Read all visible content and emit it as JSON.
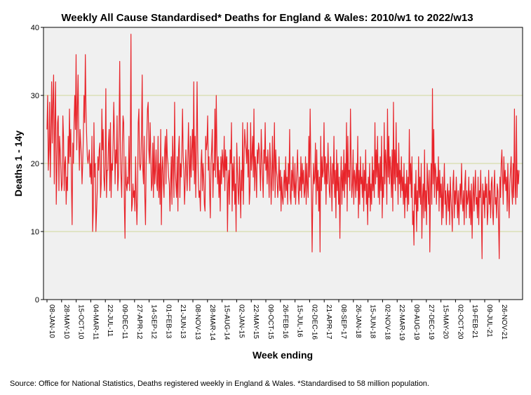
{
  "chart_data": {
    "type": "line",
    "title": "Weekly All Cause Standardised* Deaths for England & Wales: 2010/w1 to 2022/w13",
    "xlabel": "Week ending",
    "ylabel": "Deaths 1 - 14y",
    "ylim": [
      0,
      40
    ],
    "yticks": [
      0,
      10,
      20,
      30,
      40
    ],
    "grid": "horizontal at 10, 20, 30",
    "colors": {
      "line": "#e8242a",
      "plot_bg": "#f0f0f0",
      "grid": "#cfd79a",
      "frame": "#000000"
    },
    "x_tick_labels": [
      "08-JAN-10",
      "28-MAY-10",
      "15-OCT-10",
      "04-MAR-11",
      "22-JUL-11",
      "09-DEC-11",
      "27-APR-12",
      "14-SEP-12",
      "01-FEB-13",
      "21-JUN-13",
      "08-NOV-13",
      "28-MAR-14",
      "15-AUG-14",
      "02-JAN-15",
      "22-MAY-15",
      "09-OCT-15",
      "26-FEB-16",
      "15-JUL-16",
      "02-DEC-16",
      "21-APR-17",
      "08-SEP-17",
      "26-JAN-18",
      "15-JUN-18",
      "02-NOV-18",
      "22-MAR-19",
      "09-AUG-19",
      "27-DEC-19",
      "15-MAY-20",
      "02-OCT-20",
      "19-FEB-21",
      "09-JUL-21",
      "26-NOV-21"
    ],
    "series": [
      {
        "name": "Deaths 1 - 14y",
        "x_start": "2010/w1",
        "x_end": "2022/w13",
        "values": [
          25,
          30,
          19,
          22,
          29,
          18,
          24,
          32,
          23,
          29,
          33,
          17,
          26,
          32,
          14,
          19,
          26,
          27,
          16,
          24,
          22,
          19,
          16,
          17,
          27,
          24,
          16,
          20,
          21,
          14,
          18,
          16,
          24,
          20,
          28,
          21,
          25,
          17,
          11,
          23,
          20,
          26,
          30,
          25,
          36,
          22,
          28,
          33,
          24,
          19,
          25,
          23,
          21,
          17,
          20,
          24,
          30,
          26,
          36,
          28,
          24,
          21,
          20,
          21,
          22,
          18,
          20,
          17,
          24,
          10,
          13,
          26,
          18,
          20,
          10,
          13,
          16,
          21,
          19,
          22,
          23,
          15,
          17,
          28,
          22,
          25,
          18,
          16,
          20,
          31,
          15,
          19,
          19,
          23,
          25,
          16,
          26,
          15,
          20,
          19,
          23,
          29,
          24,
          17,
          22,
          20,
          27,
          16,
          18,
          25,
          35,
          22,
          18,
          15,
          23,
          27,
          26,
          14,
          9,
          21,
          17,
          16,
          18,
          17,
          24,
          16,
          22,
          39,
          13,
          14,
          17,
          15,
          16,
          13,
          21,
          15,
          11,
          16,
          26,
          28,
          20,
          19,
          20,
          25,
          33,
          19,
          17,
          24,
          15,
          11,
          20,
          24,
          28,
          29,
          22,
          20,
          26,
          21,
          16,
          17,
          23,
          15,
          24,
          17,
          19,
          22,
          17,
          16,
          24,
          15,
          20,
          14,
          25,
          11,
          19,
          21,
          17,
          15,
          22,
          24,
          17,
          25,
          21,
          20,
          18,
          17,
          13,
          17,
          21,
          14,
          24,
          20,
          15,
          29,
          19,
          17,
          15,
          21,
          13,
          22,
          24,
          15,
          20,
          18,
          22,
          28,
          21,
          19,
          14,
          17,
          22,
          19,
          16,
          21,
          26,
          20,
          16,
          24,
          18,
          22,
          25,
          19,
          32,
          17,
          24,
          15,
          22,
          32,
          22,
          17,
          15,
          16,
          13,
          20,
          22,
          16,
          20,
          18,
          14,
          13,
          24,
          22,
          23,
          27,
          19,
          21,
          16,
          12,
          20,
          22,
          25,
          15,
          20,
          19,
          28,
          18,
          30,
          22,
          17,
          21,
          15,
          19,
          13,
          21,
          17,
          22,
          20,
          18,
          24,
          16,
          22,
          19,
          21,
          10,
          17,
          19,
          14,
          22,
          20,
          26,
          13,
          20,
          16,
          21,
          14,
          17,
          10,
          23,
          19,
          16,
          14,
          21,
          17,
          12,
          19,
          16,
          26,
          14,
          20,
          25,
          23,
          22,
          20,
          26,
          18,
          22,
          14,
          16,
          26,
          19,
          21,
          24,
          18,
          28,
          16,
          21,
          19,
          15,
          22,
          20,
          23,
          22,
          19,
          16,
          25,
          21,
          18,
          15,
          22,
          20,
          26,
          19,
          21,
          17,
          22,
          19,
          15,
          23,
          20,
          14,
          18,
          24,
          16,
          20,
          26,
          15,
          22,
          19,
          18,
          15,
          17,
          21,
          16,
          19,
          13,
          18,
          15,
          14,
          17,
          19,
          15,
          21,
          16,
          18,
          14,
          20,
          17,
          25,
          15,
          14,
          19,
          16,
          21,
          17,
          15,
          20,
          14,
          17,
          19,
          22,
          16,
          14,
          18,
          16,
          21,
          15,
          20,
          17,
          19,
          15,
          16,
          21,
          14,
          20,
          17,
          15,
          24,
          18,
          28,
          20,
          16,
          7,
          15,
          20,
          17,
          18,
          23,
          14,
          22,
          16,
          19,
          13,
          18,
          7,
          24,
          16,
          21,
          18,
          19,
          26,
          17,
          21,
          14,
          20,
          17,
          23,
          19,
          16,
          15,
          21,
          18,
          13,
          20,
          17,
          24,
          15,
          19,
          12,
          22,
          16,
          20,
          14,
          18,
          9,
          17,
          21,
          14,
          19,
          16,
          22,
          15,
          20,
          17,
          26,
          13,
          24,
          18,
          19,
          16,
          28,
          20,
          15,
          17,
          22,
          14,
          19,
          18,
          15,
          20,
          16,
          24,
          12,
          19,
          14,
          21,
          17,
          18,
          15,
          20,
          13,
          19,
          16,
          22,
          14,
          17,
          11,
          18,
          15,
          20,
          13,
          17,
          14,
          21,
          16,
          19,
          15,
          26,
          17,
          22,
          18,
          24,
          15,
          20,
          14,
          21,
          16,
          24,
          12,
          18,
          15,
          26,
          17,
          22,
          20,
          14,
          28,
          18,
          24,
          17,
          21,
          19,
          15,
          22,
          13,
          29,
          17,
          22,
          16,
          26,
          18,
          20,
          14,
          23,
          17,
          19,
          15,
          21,
          16,
          18,
          14,
          20,
          12,
          17,
          15,
          19,
          13,
          18,
          14,
          25,
          17,
          20,
          15,
          21,
          11,
          13,
          8,
          17,
          14,
          19,
          10,
          16,
          13,
          21,
          15,
          18,
          14,
          20,
          9,
          15,
          17,
          12,
          22,
          13,
          16,
          11,
          20,
          17,
          14,
          19,
          7,
          16,
          20,
          14,
          31,
          17,
          25,
          15,
          20,
          19,
          14,
          18,
          16,
          21,
          13,
          19,
          15,
          17,
          11,
          18,
          12,
          16,
          20,
          14,
          16,
          11,
          15,
          17,
          13,
          16,
          11,
          18,
          15,
          13,
          10,
          17,
          19,
          12,
          16,
          14,
          18,
          15,
          12,
          16,
          11,
          15,
          17,
          14,
          20,
          15,
          13,
          16,
          11,
          17,
          19,
          12,
          16,
          14,
          15,
          18,
          12,
          16,
          11,
          17,
          9,
          15,
          18,
          13,
          16,
          19,
          14,
          15,
          12,
          18,
          11,
          16,
          15,
          19,
          13,
          6,
          17,
          14,
          16,
          12,
          18,
          15,
          17,
          11,
          13,
          19,
          14,
          16,
          12,
          17,
          18,
          13,
          11,
          16,
          19,
          14,
          15,
          12,
          17,
          16,
          11,
          6,
          18,
          15,
          20,
          22,
          18,
          14,
          21,
          17,
          19,
          16,
          18,
          13,
          20,
          15,
          12,
          17,
          19,
          21,
          16,
          14,
          20,
          15,
          28,
          17,
          14,
          27,
          15,
          19,
          17,
          19
        ]
      }
    ]
  },
  "footer": {
    "source_note": "Source: Office for National Statistics, Deaths registered weekly in England & Wales. *Standardised to 58 million population."
  }
}
